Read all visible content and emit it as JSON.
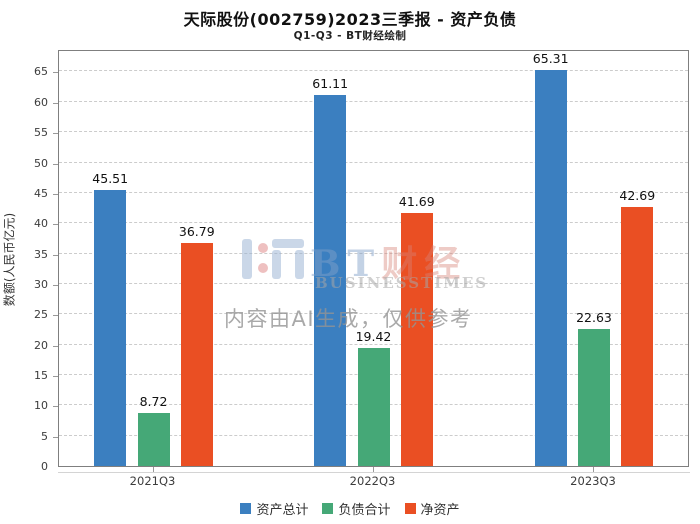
{
  "header": {
    "title": "天际股份(002759)2023三季报 - 资产负债",
    "subtitle": "Q1-Q3 - BT财经绘制"
  },
  "watermark": {
    "brand_bt": "BT",
    "brand_caijing": "财经",
    "brand_en": "BUSINESSTIMES",
    "disclaimer": "内容由AI生成，仅供参考"
  },
  "chart_data": {
    "type": "bar",
    "title": "天际股份(002759)2023三季报 - 资产负债",
    "subtitle": "Q1-Q3 - BT财经绘制",
    "categories": [
      "2021Q3",
      "2022Q3",
      "2023Q3"
    ],
    "series": [
      {
        "name": "资产总计",
        "color": "#3b7fc0",
        "values": [
          45.51,
          61.11,
          65.31
        ]
      },
      {
        "name": "负债合计",
        "color": "#45a877",
        "values": [
          8.72,
          19.42,
          22.63
        ]
      },
      {
        "name": "净资产",
        "color": "#ea4f23",
        "values": [
          36.79,
          41.69,
          42.69
        ]
      }
    ],
    "ylabel": "数额(人民币亿元)",
    "ylim": [
      0,
      68.7
    ],
    "ytick_step": 5,
    "ytick_max_label": 65,
    "grid": true,
    "legend_position": "bottom",
    "value_labels": true
  }
}
